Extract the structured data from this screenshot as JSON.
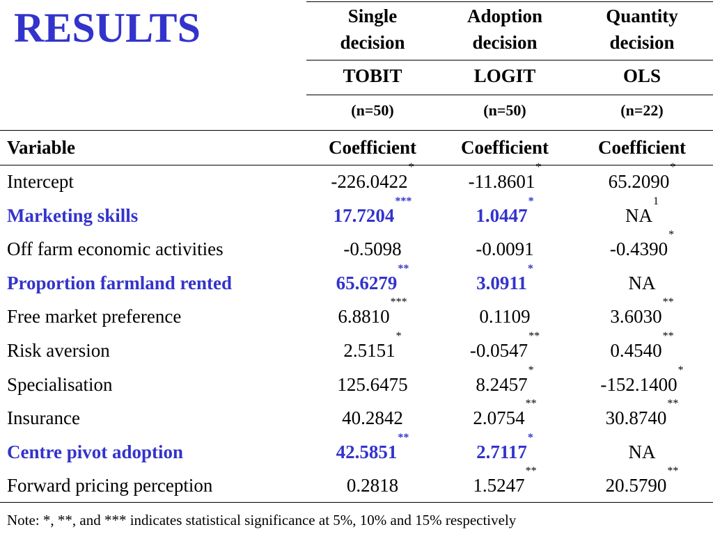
{
  "title": "RESULTS",
  "accent_color": "#3333cc",
  "header": {
    "columns": [
      {
        "line1": "Single",
        "line2": "decision",
        "model": "TOBIT",
        "n": "(n=50)"
      },
      {
        "line1": "Adoption",
        "line2": "decision",
        "model": "LOGIT",
        "n": "(n=50)"
      },
      {
        "line1": "Quantity",
        "line2": "decision",
        "model": "OLS",
        "n": "(n=22)"
      }
    ],
    "variable_label": "Variable",
    "coef_label": "Coefficient"
  },
  "rows": [
    {
      "variable": "Intercept",
      "highlight": false,
      "cells": [
        {
          "v": "-226.0422",
          "s": "*"
        },
        {
          "v": "-11.8601",
          "s": "*"
        },
        {
          "v": "65.2090",
          "s": "*"
        }
      ]
    },
    {
      "variable": "Marketing skills",
      "highlight": true,
      "cells": [
        {
          "v": "17.7204",
          "s": "***"
        },
        {
          "v": "1.0447",
          "s": "*"
        },
        {
          "v": "NA",
          "s": "1"
        }
      ]
    },
    {
      "variable": "Off farm economic activities",
      "highlight": false,
      "cells": [
        {
          "v": "-0.5098",
          "s": ""
        },
        {
          "v": "-0.0091",
          "s": ""
        },
        {
          "v": "-0.4390",
          "s": "*"
        }
      ]
    },
    {
      "variable": "Proportion farmland rented",
      "highlight": true,
      "cells": [
        {
          "v": "65.6279",
          "s": "**"
        },
        {
          "v": "3.0911",
          "s": "*"
        },
        {
          "v": "NA",
          "s": ""
        }
      ]
    },
    {
      "variable": "Free market preference",
      "highlight": false,
      "cells": [
        {
          "v": "6.8810",
          "s": "***"
        },
        {
          "v": "0.1109",
          "s": ""
        },
        {
          "v": "3.6030",
          "s": "**"
        }
      ]
    },
    {
      "variable": "Risk aversion",
      "highlight": false,
      "cells": [
        {
          "v": "2.5151",
          "s": "*"
        },
        {
          "v": "-0.0547",
          "s": "**"
        },
        {
          "v": "0.4540",
          "s": "**"
        }
      ]
    },
    {
      "variable": "Specialisation",
      "highlight": false,
      "cells": [
        {
          "v": "125.6475",
          "s": ""
        },
        {
          "v": "8.2457",
          "s": "*"
        },
        {
          "v": "-152.1400",
          "s": "*"
        }
      ]
    },
    {
      "variable": "Insurance",
      "highlight": false,
      "cells": [
        {
          "v": "40.2842",
          "s": ""
        },
        {
          "v": "2.0754",
          "s": "**"
        },
        {
          "v": "30.8740",
          "s": "**"
        }
      ]
    },
    {
      "variable": "Centre pivot adoption",
      "highlight": true,
      "cells": [
        {
          "v": "42.5851",
          "s": "**"
        },
        {
          "v": "2.7117",
          "s": "*"
        },
        {
          "v": "NA",
          "s": ""
        }
      ]
    },
    {
      "variable": "Forward pricing perception",
      "highlight": false,
      "cells": [
        {
          "v": "0.2818",
          "s": ""
        },
        {
          "v": "1.5247",
          "s": "**"
        },
        {
          "v": "20.5790",
          "s": "**"
        }
      ]
    }
  ],
  "note": "Note: *, **, and *** indicates statistical significance at 5%, 10% and 15% respectively"
}
